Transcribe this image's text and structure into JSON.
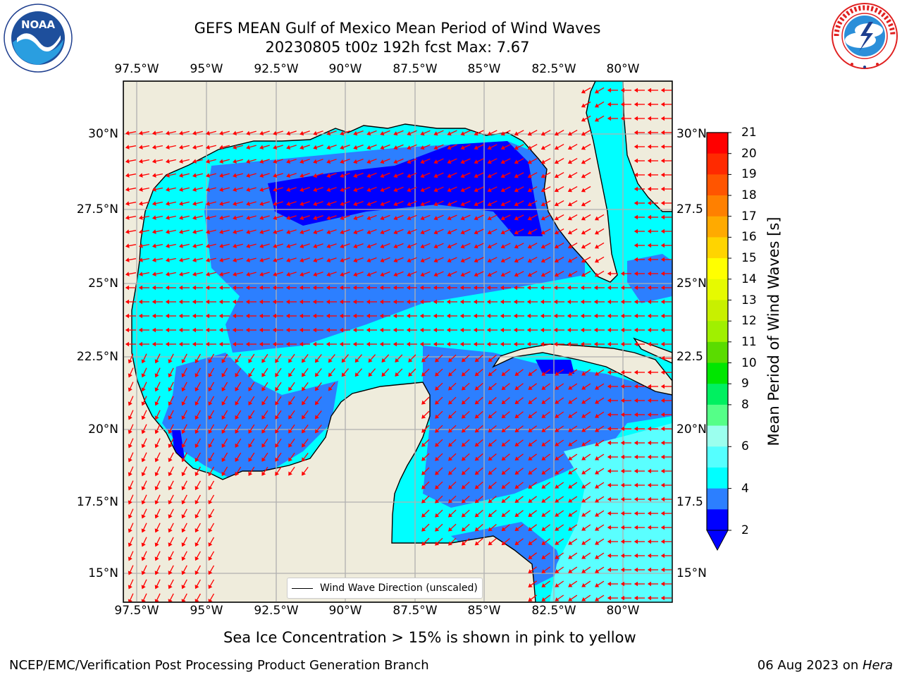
{
  "header": {
    "title_line1": "GEFS MEAN Gulf of Mexico Mean Period of Wind Waves",
    "title_line2": "20230805 t00z 192h fcst   Max: 7.67"
  },
  "logos": {
    "noaa_text": "NOAA",
    "noaa_ring_text": "NATIONAL OCEANIC AND ATMOSPHERIC ADMINISTRATION · U.S. DEPARTMENT OF COMMERCE",
    "nws_ring_text": "NATIONAL WEATHER SERVICE"
  },
  "map": {
    "lon_ticks": [
      "97.5°W",
      "95°W",
      "92.5°W",
      "90°W",
      "87.5°W",
      "85°W",
      "82.5°W",
      "80°W"
    ],
    "lat_ticks_left": [
      "30°N",
      "27.5°N",
      "25°N",
      "22.5°N",
      "20°N",
      "17.5°N",
      "15°N"
    ],
    "lat_ticks_right": [
      "30°N",
      "27.5",
      "25°N",
      "22.5",
      "20°N",
      "17.5",
      "15°N"
    ],
    "legend_label": "Wind Wave Direction (unscaled)",
    "land_color": "#efecdc",
    "arrow_color": "#ff0000",
    "grid_color": "#b0b0b0"
  },
  "colorbar": {
    "label": "Mean Period of Wind Waves [s]",
    "ticks": [
      "21",
      "20",
      "19",
      "18",
      "17",
      "16",
      "15",
      "14",
      "13",
      "12",
      "11",
      "10",
      "9",
      "8",
      "6",
      "4",
      "2"
    ],
    "colors_top_to_bottom": [
      "#ff0000",
      "#ff2a00",
      "#ff5500",
      "#ff8000",
      "#ffaa00",
      "#ffd400",
      "#ffff00",
      "#e6fa00",
      "#c8f000",
      "#a0f000",
      "#5adc00",
      "#00e600",
      "#00f060",
      "#55ff88",
      "#9bffee",
      "#55ffff",
      "#00ffff",
      "#2c7fff",
      "#0000ff"
    ]
  },
  "footer": {
    "ice_note": "Sea Ice Concentration > 15% is shown in pink to yellow",
    "credit": "NCEP/EMC/Verification Post Processing Product Generation Branch",
    "date": "06 Aug 2023 on ",
    "machine": "Hera"
  }
}
